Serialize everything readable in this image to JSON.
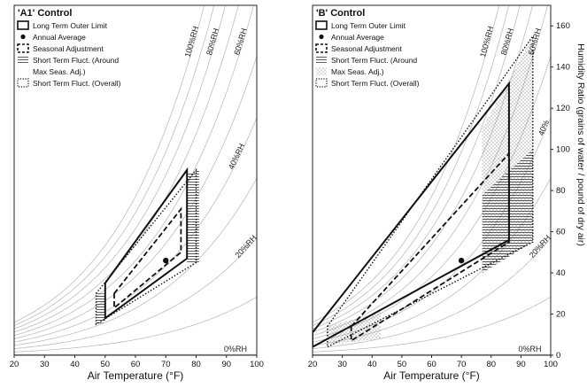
{
  "chart_data": [
    {
      "type": "line",
      "title": "'A1' Control",
      "xlabel": "Air Temperature (°F)",
      "ylabel": "",
      "xlim": [
        20,
        100
      ],
      "ylim": [
        0,
        170
      ],
      "x_ticks": [
        20,
        30,
        40,
        50,
        60,
        70,
        80,
        90,
        100
      ],
      "y_ticks": [],
      "rh_lines": [
        0,
        10,
        20,
        30,
        40,
        50,
        60,
        70,
        80,
        90,
        100
      ],
      "rh_labels": [
        {
          "rh": 100,
          "text": "100%RH",
          "at_y": 152
        },
        {
          "rh": 80,
          "text": "80%RH",
          "at_y": 152
        },
        {
          "rh": 60,
          "text": "60%RH",
          "at_y": 152
        },
        {
          "rh": 40,
          "text": "40%RH",
          "at_y": 96
        },
        {
          "rh": 20,
          "text": "20%RH",
          "at_y": 52
        },
        {
          "rh": 0,
          "text": "0%RH",
          "at_x": 93
        }
      ],
      "legend": [
        {
          "style": "solid-box",
          "label": "Long Term Outer Limit"
        },
        {
          "style": "dot",
          "label": "Annual Average"
        },
        {
          "style": "dash-box",
          "label": "Seasonal Adjustment"
        },
        {
          "style": "hatch-h",
          "label": "Short Term Fluct. (Around"
        },
        {
          "style": "none",
          "label": "Max Seas. Adj.)"
        },
        {
          "style": "dotted-box",
          "label": "Short Term Fluct. (Overall)"
        }
      ],
      "annual_average": {
        "x": 70,
        "y": 46
      },
      "long_term_outer_limit": [
        {
          "x": 50,
          "y": 35
        },
        {
          "x": 77,
          "y": 90
        },
        {
          "x": 77,
          "y": 47
        },
        {
          "x": 50,
          "y": 18
        }
      ],
      "seasonal_adjustment": [
        {
          "x": 53,
          "y": 30
        },
        {
          "x": 75,
          "y": 71
        },
        {
          "x": 75,
          "y": 50
        },
        {
          "x": 53,
          "y": 23
        }
      ],
      "short_term_overall": [
        {
          "x": 47,
          "y": 30
        },
        {
          "x": 80,
          "y": 90
        },
        {
          "x": 80,
          "y": 45
        },
        {
          "x": 47,
          "y": 15
        }
      ],
      "short_term_around_max": [
        {
          "x": 47,
          "y": 30
        },
        {
          "x": 50,
          "y": 30
        },
        {
          "x": 50,
          "y": 16
        },
        {
          "x": 47,
          "y": 15
        },
        {
          "x": 77,
          "y": 88
        },
        {
          "x": 81,
          "y": 90
        },
        {
          "x": 81,
          "y": 45
        },
        {
          "x": 77,
          "y": 45
        }
      ]
    },
    {
      "type": "line",
      "title": "'B' Control",
      "xlabel": "Air Temperature (°F)",
      "ylabel": "Humidity Ratio (grains of water / pound of dry air)",
      "xlim": [
        20,
        100
      ],
      "ylim": [
        0,
        170
      ],
      "x_ticks": [
        20,
        30,
        40,
        50,
        60,
        70,
        80,
        90,
        100
      ],
      "y_ticks": [
        0,
        20,
        40,
        60,
        80,
        100,
        120,
        140,
        160
      ],
      "rh_lines": [
        0,
        10,
        20,
        30,
        40,
        50,
        60,
        70,
        80,
        90,
        100
      ],
      "rh_labels": [
        {
          "rh": 100,
          "text": "100%RH",
          "at_y": 152
        },
        {
          "rh": 80,
          "text": "80%RH",
          "at_y": 152
        },
        {
          "rh": 60,
          "text": "60%RH",
          "at_y": 152
        },
        {
          "rh": 40,
          "text": "40%",
          "at_y": 110
        },
        {
          "rh": 20,
          "text": "20%RH",
          "at_y": 52
        },
        {
          "rh": 0,
          "text": "0%RH",
          "at_x": 93
        }
      ],
      "legend": [
        {
          "style": "solid-box",
          "label": "Long Term Outer Limit"
        },
        {
          "style": "dot",
          "label": "Annual Average"
        },
        {
          "style": "dash-box",
          "label": "Seasonal Adjustment"
        },
        {
          "style": "hatch-h",
          "label": "Short Term Fluct. (Around"
        },
        {
          "style": "hatch-d",
          "label": "Max Seas. Adj.)"
        },
        {
          "style": "dotted-box",
          "label": "Short Term Fluct. (Overall)"
        }
      ],
      "annual_average": {
        "x": 70,
        "y": 46
      },
      "long_term_outer_limit": [
        {
          "x": 20,
          "y": 11
        },
        {
          "x": 86,
          "y": 132
        },
        {
          "x": 86,
          "y": 56
        },
        {
          "x": 20,
          "y": 4
        }
      ],
      "seasonal_adjustment": [
        {
          "x": 33,
          "y": 14
        },
        {
          "x": 86,
          "y": 98
        },
        {
          "x": 86,
          "y": 55
        },
        {
          "x": 33,
          "y": 7
        }
      ],
      "short_term_overall": [
        {
          "x": 25,
          "y": 14
        },
        {
          "x": 94,
          "y": 155
        },
        {
          "x": 94,
          "y": 55
        },
        {
          "x": 25,
          "y": 4
        }
      ],
      "short_term_around_max": [
        {
          "x": 77,
          "y": 110
        },
        {
          "x": 94,
          "y": 155
        },
        {
          "x": 94,
          "y": 55
        },
        {
          "x": 77,
          "y": 40
        }
      ],
      "short_term_around_min": [
        {
          "x": 25,
          "y": 14
        },
        {
          "x": 43,
          "y": 21
        },
        {
          "x": 43,
          "y": 8
        },
        {
          "x": 25,
          "y": 5
        }
      ]
    }
  ]
}
